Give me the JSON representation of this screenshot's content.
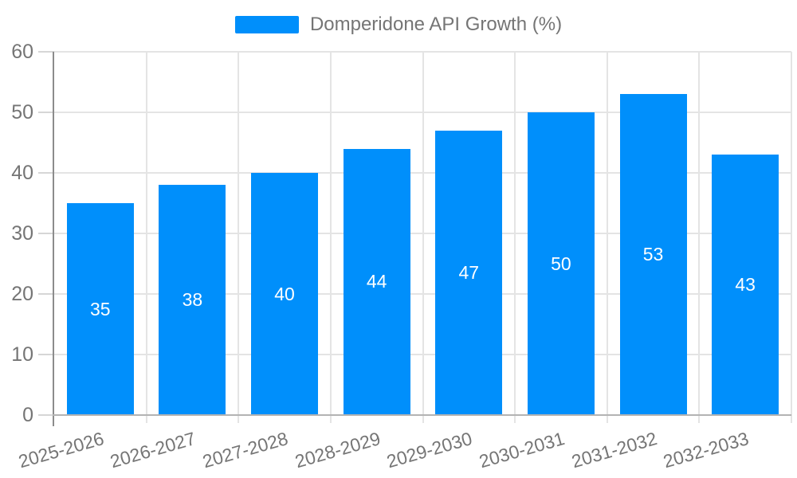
{
  "legend": {
    "series_label": "Domperidone API Growth (%)"
  },
  "chart_data": {
    "type": "bar",
    "title": "",
    "xlabel": "",
    "ylabel": "",
    "categories": [
      "2025-2026",
      "2026-2027",
      "2027-2028",
      "2028-2029",
      "2029-2030",
      "2030-2031",
      "2031-2032",
      "2032-2033"
    ],
    "series": [
      {
        "name": "Domperidone API Growth (%)",
        "values": [
          35,
          38,
          40,
          44,
          47,
          50,
          53,
          43
        ],
        "color": "#008FFB"
      }
    ],
    "bar_value_labels": [
      "35",
      "38",
      "40",
      "44",
      "47",
      "50",
      "53",
      "43"
    ],
    "bar_label_color": "#ffffff",
    "yticks": [
      0,
      10,
      20,
      30,
      40,
      50,
      60
    ],
    "ylim": [
      0,
      60
    ],
    "grid": "horizontal-and-vertical",
    "grid_color": "#e4e4e4",
    "axis_text_color": "#757575",
    "legend_position": "top-center",
    "x_label_rotation_deg": -16
  }
}
